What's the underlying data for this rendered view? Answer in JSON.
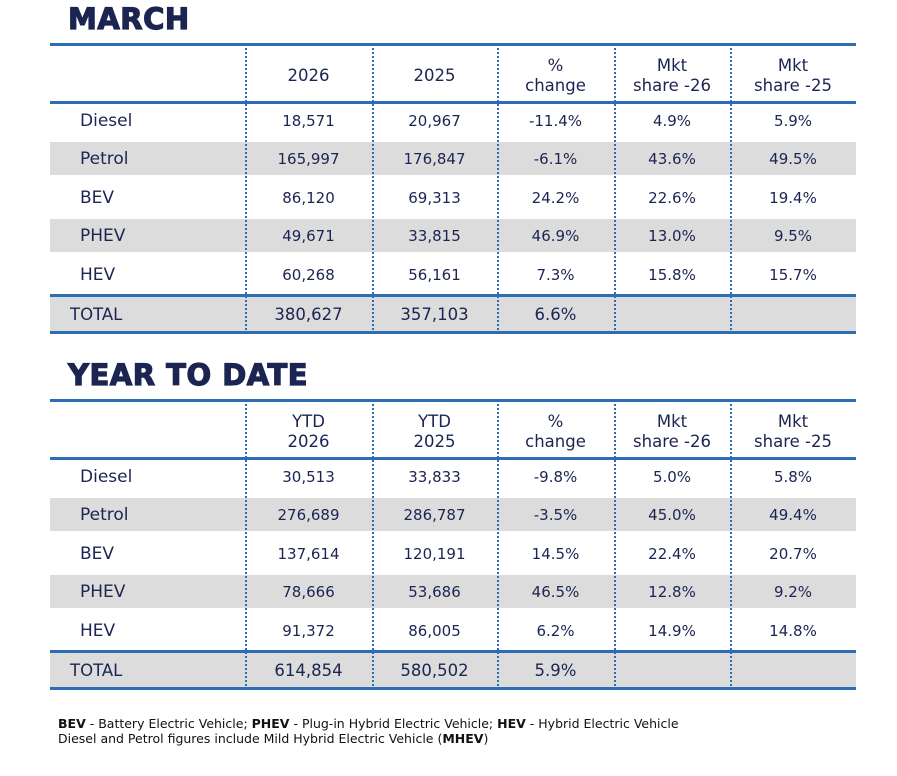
{
  "sections": [
    {
      "title": "MARCH",
      "headers": [
        [
          "2026"
        ],
        [
          "2025"
        ],
        [
          "%",
          "change"
        ],
        [
          "Mkt",
          "share -26"
        ],
        [
          "Mkt",
          "share -25"
        ]
      ],
      "rows": [
        [
          "Diesel",
          "18,571",
          "20,967",
          "-11.4%",
          "4.9%",
          "5.9%"
        ],
        [
          "Petrol",
          "165,997",
          "176,847",
          "-6.1%",
          "43.6%",
          "49.5%"
        ],
        [
          "BEV",
          "86,120",
          "69,313",
          "24.2%",
          "22.6%",
          "19.4%"
        ],
        [
          "PHEV",
          "49,671",
          "33,815",
          "46.9%",
          "13.0%",
          "9.5%"
        ],
        [
          "HEV",
          "60,268",
          "56,161",
          "7.3%",
          "15.8%",
          "15.7%"
        ]
      ],
      "total": [
        "TOTAL",
        "380,627",
        "357,103",
        "6.6%"
      ]
    },
    {
      "title": "YEAR TO DATE",
      "headers": [
        [
          "YTD",
          "2026"
        ],
        [
          "YTD",
          "2025"
        ],
        [
          "%",
          "change"
        ],
        [
          "Mkt",
          "share -26"
        ],
        [
          "Mkt",
          "share -25"
        ]
      ],
      "rows": [
        [
          "Diesel",
          "30,513",
          "33,833",
          "-9.8%",
          "5.0%",
          "5.8%"
        ],
        [
          "Petrol",
          "276,689",
          "286,787",
          "-3.5%",
          "45.0%",
          "49.4%"
        ],
        [
          "BEV",
          "137,614",
          "120,191",
          "14.5%",
          "22.4%",
          "20.7%"
        ],
        [
          "PHEV",
          "78,666",
          "53,686",
          "46.5%",
          "12.8%",
          "9.2%"
        ],
        [
          "HEV",
          "91,372",
          "86,005",
          "6.2%",
          "14.9%",
          "14.8%"
        ]
      ],
      "total": [
        "TOTAL",
        "614,854",
        "580,502",
        "5.9%"
      ]
    }
  ],
  "footnote": {
    "line1": [
      {
        "bold": "BEV",
        "text": " - Battery Electric Vehicle; "
      },
      {
        "bold": "PHEV",
        "text": " - Plug-in Hybrid Electric Vehicle; "
      },
      {
        "bold": "HEV",
        "text": " - Hybrid Electric Vehicle"
      }
    ],
    "line2": {
      "before": "Diesel and Petrol figures include Mild Hybrid Electric Vehicle (",
      "bold": "MHEV",
      "after": ")"
    }
  }
}
